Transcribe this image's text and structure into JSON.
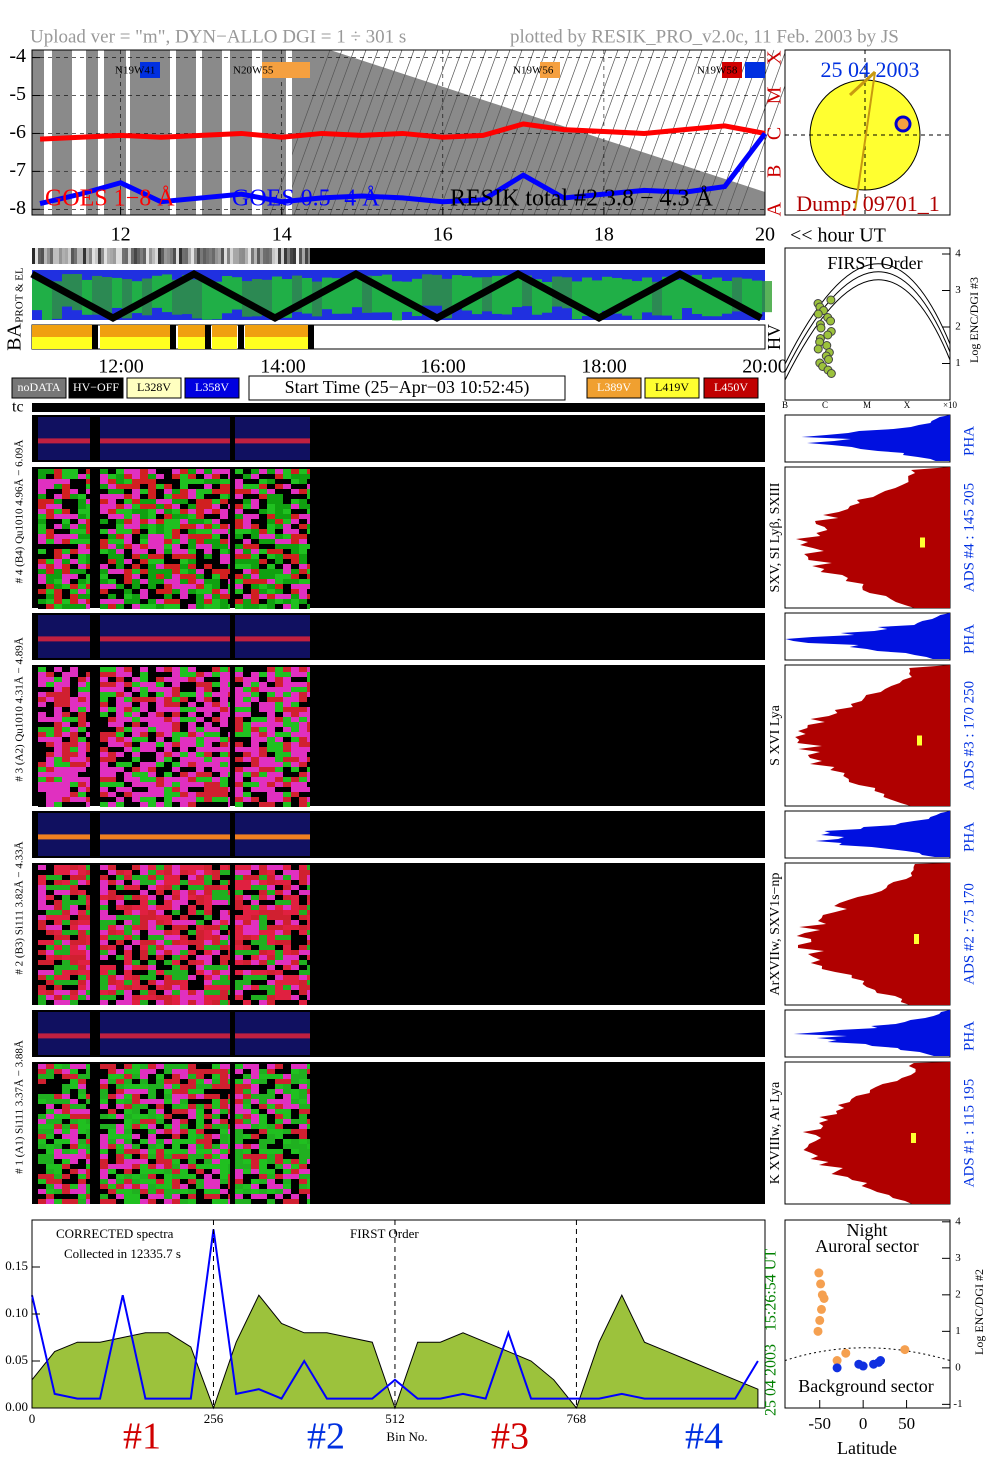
{
  "header": {
    "upload": "Upload ver = \"m\", DYN−ALLO DGI =   1 ÷ 301 s",
    "plotted": "plotted by RESIK_PRO_v2.0c, 11 Feb. 2003 by JS"
  },
  "regions": [
    "N19W41",
    "N20W55",
    "N19W56",
    "N19W58"
  ],
  "sun": {
    "date": "25 04 2003",
    "dump": "Dump: 09701_1"
  },
  "timeline": {
    "unit": "<< hour UT",
    "prot": "PROT & EL",
    "ba": "BA",
    "hv": "HV",
    "ticks": [
      "12:00",
      "14:00",
      "16:00",
      "18:00",
      "20:00"
    ]
  },
  "legend": [
    {
      "label": "noDATA",
      "color": "#777",
      "text": "#fff"
    },
    {
      "label": "HV−OFF",
      "color": "#000",
      "text": "#fff"
    },
    {
      "label": "L328V",
      "color": "#ffffc0",
      "text": "#000"
    },
    {
      "label": "L358V",
      "color": "#0000e0",
      "text": "#fff"
    },
    {
      "label": "L389V",
      "color": "#f0a030",
      "text": "#fff"
    },
    {
      "label": "L419V",
      "color": "#ffff30",
      "text": "#000"
    },
    {
      "label": "L450V",
      "color": "#c00000",
      "text": "#fff"
    }
  ],
  "start_time": "Start Time (25−Apr−03 10:52:45)",
  "tc": "tc",
  "first_order": {
    "title": "FIRST Order",
    "ylabel": "Log ENC/DGI #3",
    "yticks": [
      1,
      2,
      3,
      4
    ],
    "xlabels": [
      "B",
      "C",
      "M",
      "X",
      "×10"
    ]
  },
  "channels": [
    {
      "left": "# 4 (B4) Qu1010 4.96Å − 6.09Å",
      "right": "SXV, SI Lyβ, SXIII",
      "ads": "ADS #4 :  145 205",
      "pha": "PHA"
    },
    {
      "left": "# 3 (A2) Qu1010 4.31Å − 4.89Å",
      "right": "S XVI Lya",
      "ads": "ADS #3 :  170 250",
      "pha": "PHA"
    },
    {
      "left": "# 2 (B3) Si111 3.82Å − 4.33Å",
      "right": "ArXVIIw, SXV1s−np",
      "ads": "ADS #2 :  75 170",
      "pha": "PHA"
    },
    {
      "left": "# 1 (A1) Si111 3.37Å − 3.88Å",
      "right": "K XVIIIw, Ar Lya",
      "ads": "ADS #1 :  115 195",
      "pha": "PHA"
    }
  ],
  "spectrum_info": {
    "corrected": "CORRECTED spectra",
    "collected": "Collected in 12335.7 s",
    "order": "FIRST Order",
    "time": "15:26:54 UT",
    "date": "25 04 2003",
    "channels": [
      "#1",
      "#2",
      "#3",
      "#4"
    ]
  },
  "latitude_info": {
    "night": "Night",
    "auroral": "Auroral sector",
    "background": "Background sector",
    "ylabel": "Log ENC/DGI #2"
  },
  "chart_data": [
    {
      "type": "line",
      "resik_label": "RESIK total #2  3.8 − 4.3 Å",
      "x": [
        11,
        11.5,
        12,
        12.5,
        13,
        13.5,
        14,
        14.5,
        15,
        15.5,
        16,
        16.5,
        17,
        17.5,
        18,
        18.5,
        19,
        19.5,
        20
      ],
      "xlim": [
        10.9,
        20
      ],
      "xticks": [
        12,
        14,
        16,
        18,
        20
      ],
      "ylim": [
        -8.15,
        -3.8
      ],
      "yticks": [
        -4,
        -5,
        -6,
        -7,
        -8
      ],
      "class_labels": [
        "X",
        "M",
        "C",
        "B",
        "A"
      ],
      "grid": true,
      "series": [
        {
          "name": "GOES 1−8 Å",
          "color": "#ff0000",
          "values": [
            -6.15,
            -6.1,
            -6.05,
            -6.1,
            -6.05,
            -6.0,
            -6.1,
            -6.0,
            -6.05,
            -6.0,
            -6.1,
            -6.05,
            -5.75,
            -5.9,
            -5.95,
            -6.0,
            -5.9,
            -5.8,
            -6.0
          ]
        },
        {
          "name": "GOES 0.5−4 Å",
          "color": "#0000ff",
          "values": [
            -7.85,
            -7.6,
            -7.3,
            -7.8,
            -7.7,
            -7.6,
            -7.8,
            -7.7,
            -7.65,
            -7.7,
            -7.8,
            -7.75,
            -7.1,
            -7.7,
            -7.6,
            -7.5,
            -7.55,
            -7.4,
            -6.0
          ]
        }
      ]
    },
    {
      "type": "area",
      "xlabel": "Bin No.",
      "x": [
        0,
        32,
        64,
        96,
        128,
        160,
        192,
        224,
        256,
        288,
        320,
        352,
        384,
        416,
        448,
        480,
        512,
        544,
        576,
        608,
        640,
        672,
        704,
        736,
        768,
        800,
        832,
        864,
        896,
        928,
        960,
        992,
        1024
      ],
      "xlim": [
        0,
        1034
      ],
      "xticks": [
        0,
        256,
        512,
        768
      ],
      "ylim": [
        0,
        0.2
      ],
      "yticks": [
        {
          "value": 0,
          "label": "0.00"
        },
        0.05,
        {
          "value": 0.1,
          "label": "0.10"
        },
        0.15
      ],
      "series": [
        {
          "color": "#9cc23c",
          "values": [
            0.03,
            0.06,
            0.07,
            0.07,
            0.075,
            0.08,
            0.08,
            0.065,
            0,
            0.07,
            0.12,
            0.09,
            0.08,
            0.08,
            0.075,
            0.07,
            0,
            0.07,
            0.07,
            0.08,
            0.07,
            0.06,
            0.05,
            0.03,
            0,
            0.07,
            0.12,
            0.07,
            0.06,
            0.05,
            0.04,
            0.03,
            0.02
          ]
        },
        {
          "color": "#0000ff",
          "values": [
            0.12,
            0.015,
            0.01,
            0.01,
            0.12,
            0.01,
            0.01,
            0.01,
            0.19,
            0.015,
            0.02,
            0.01,
            0.05,
            0.01,
            0.01,
            0.01,
            0.03,
            0.01,
            0.01,
            0.015,
            0.01,
            0.08,
            0.01,
            0.01,
            0.01,
            0.01,
            0.015,
            0.01,
            0.01,
            0.01,
            0.01,
            0.01,
            0.05
          ]
        }
      ]
    },
    {
      "type": "scatter",
      "xlabel": "Latitude",
      "xlim": [
        -90,
        100
      ],
      "xticks": [
        -50,
        0,
        50
      ],
      "ylim": [
        -1.1,
        4.05
      ],
      "yticks": [
        -1,
        0,
        1,
        2,
        3,
        4
      ],
      "series": [
        {
          "color": "#f5a050",
          "x": [
            -52,
            -50,
            -48,
            -47,
            -49,
            -51,
            -45,
            -20,
            48,
            -30
          ],
          "values": [
            1.0,
            1.3,
            1.6,
            2.0,
            2.3,
            2.6,
            1.9,
            0.4,
            0.5,
            0.2
          ]
        },
        {
          "color": "#1030e0",
          "x": [
            -30,
            -5,
            0,
            12,
            18,
            20
          ],
          "values": [
            0.0,
            0.1,
            0.05,
            0.1,
            0.15,
            0.2
          ]
        }
      ]
    }
  ]
}
